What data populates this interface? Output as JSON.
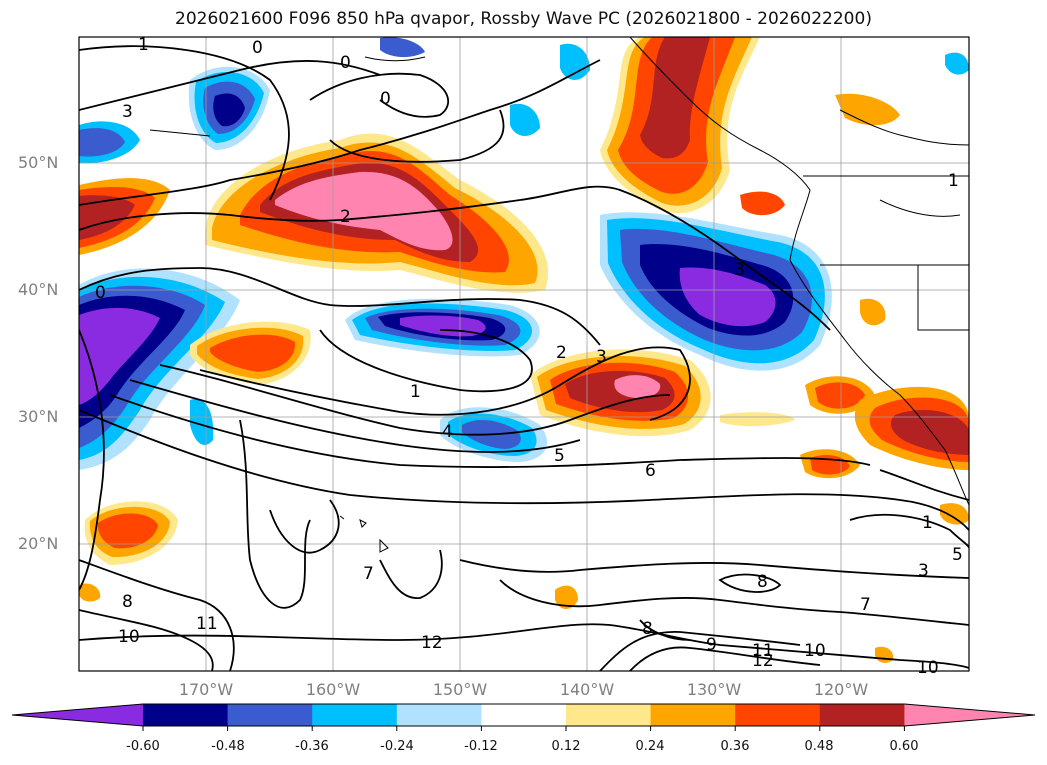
{
  "title": "2026021600 F096 850 hPa qvapor, Rossby Wave PC (2026021800 - 2026022200)",
  "axes": {
    "lat_labels": [
      "50°N",
      "40°N",
      "30°N",
      "20°N"
    ],
    "lon_labels": [
      "170°W",
      "160°W",
      "150°W",
      "140°W",
      "130°W",
      "120°W"
    ]
  },
  "colorbar": {
    "ticks": [
      "-0.60",
      "-0.48",
      "-0.36",
      "-0.24",
      "-0.12",
      "0.12",
      "0.24",
      "0.36",
      "0.48",
      "0.60"
    ],
    "colors": [
      "#8a2be2",
      "#00008b",
      "#3a5ccf",
      "#00bfff",
      "#b0e2ff",
      "#ffffff",
      "#ffe88c",
      "#ffa500",
      "#ff4500",
      "#b22222",
      "#ff85b0"
    ]
  },
  "contour_labels": [
    "1",
    "0",
    "0",
    "3",
    "0",
    "2",
    "0",
    "1",
    "2",
    "3",
    "4",
    "5",
    "6",
    "3",
    "1",
    "1",
    "5",
    "3",
    "8",
    "7",
    "8",
    "9",
    "11",
    "12",
    "10",
    "10",
    "12",
    "11",
    "10",
    "8",
    "7"
  ],
  "colors": {
    "coast": "#000000",
    "grid": "#9e9e9e"
  }
}
